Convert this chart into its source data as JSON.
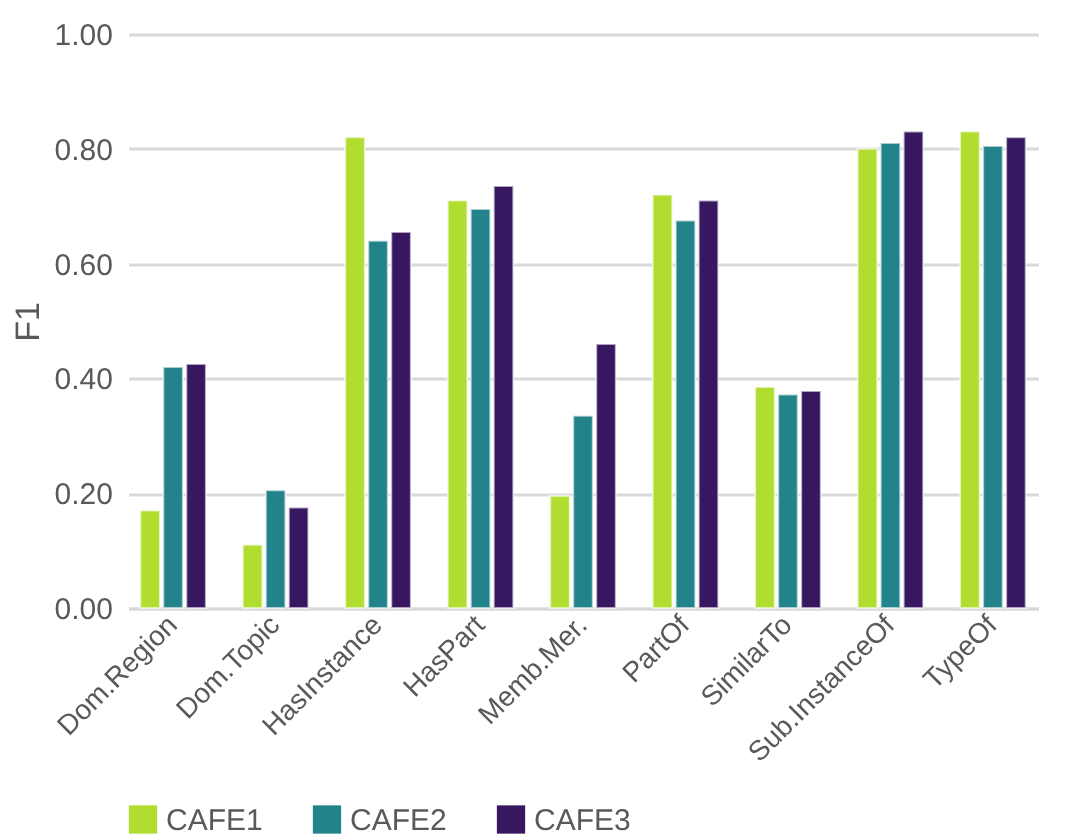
{
  "chart_data": {
    "type": "bar",
    "ylabel": "F1",
    "categories": [
      "Dom.Region",
      "Dom.Topic",
      "HasInstance",
      "HasPart",
      "Memb.Mer.",
      "PartOf",
      "SimilarTo",
      "Sub.InstanceOf",
      "TypeOf"
    ],
    "series": [
      {
        "name": "CAFE1",
        "color": "#b0dd2f",
        "values": [
          0.17,
          0.11,
          0.82,
          0.71,
          0.195,
          0.72,
          0.385,
          0.8,
          0.83
        ]
      },
      {
        "name": "CAFE2",
        "color": "#23838b",
        "values": [
          0.42,
          0.205,
          0.64,
          0.695,
          0.335,
          0.675,
          0.372,
          0.81,
          0.805
        ]
      },
      {
        "name": "CAFE3",
        "color": "#37175f",
        "values": [
          0.425,
          0.175,
          0.655,
          0.735,
          0.46,
          0.71,
          0.378,
          0.83,
          0.82
        ]
      }
    ],
    "ylim": [
      0,
      1
    ],
    "yticks": [
      {
        "value": 0,
        "label": "0.00"
      },
      {
        "value": 0.2,
        "label": "0.20"
      },
      {
        "value": 0.4,
        "label": "0.40"
      },
      {
        "value": 0.6,
        "label": "0.60"
      },
      {
        "value": 0.8,
        "label": "0.80"
      },
      {
        "value": 1,
        "label": "1.00"
      }
    ],
    "grid": "y",
    "legend": "bottom"
  }
}
